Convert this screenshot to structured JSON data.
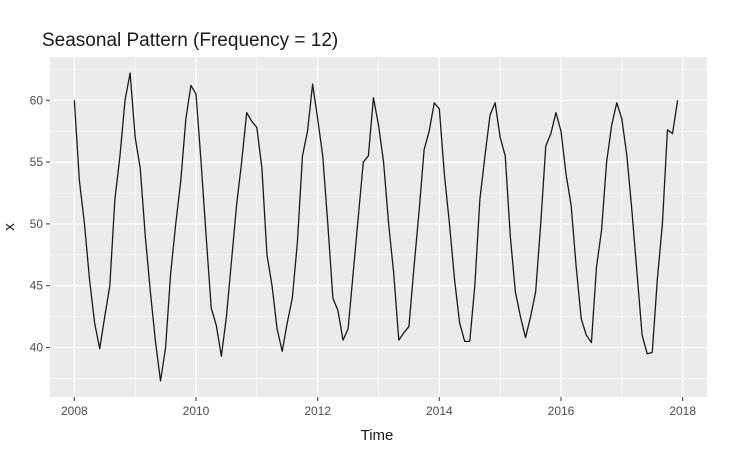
{
  "chart_data": {
    "type": "line",
    "title": "Seasonal Pattern (Frequency = 12)",
    "xlabel": "Time",
    "ylabel": "x",
    "xlim": [
      2007.6,
      2018.4
    ],
    "ylim": [
      36.0,
      63.5
    ],
    "x_ticks": [
      2008,
      2010,
      2012,
      2014,
      2016,
      2018
    ],
    "x_tick_labels": [
      "2008",
      "2010",
      "2012",
      "2014",
      "2016",
      "2018"
    ],
    "y_ticks": [
      40,
      45,
      50,
      55,
      60
    ],
    "y_tick_labels": [
      "40",
      "45",
      "50",
      "55",
      "60"
    ],
    "grid": true,
    "legend": "none",
    "colors": {
      "panel": "#ebebeb",
      "grid": "#ffffff",
      "line": "#1a1a1a"
    },
    "series": [
      {
        "x_start": 2008,
        "frequency": 12,
        "values": [
          60.0,
          53.5,
          50.0,
          45.5,
          42.0,
          39.9,
          42.5,
          45.0,
          52.0,
          55.5,
          60.0,
          62.2,
          57.0,
          54.5,
          49.0,
          44.5,
          40.5,
          37.3,
          40.0,
          46.0,
          50.0,
          53.5,
          58.5,
          61.2,
          60.5,
          55.0,
          49.0,
          43.2,
          41.8,
          39.3,
          42.5,
          47.0,
          51.5,
          55.0,
          59.0,
          58.3,
          57.8,
          54.5,
          47.5,
          45.0,
          41.5,
          39.7,
          42.0,
          44.0,
          48.5,
          55.5,
          57.5,
          61.3,
          58.5,
          55.5,
          50.0,
          44.0,
          43.0,
          40.6,
          41.5,
          46.0,
          50.5,
          55.0,
          55.5,
          60.2,
          58.0,
          55.0,
          50.0,
          46.0,
          40.6,
          41.2,
          41.7,
          46.5,
          51.0,
          56.0,
          57.5,
          59.8,
          59.3,
          54.0,
          50.0,
          45.5,
          42.0,
          40.5,
          40.5,
          45.0,
          52.0,
          55.5,
          58.8,
          59.8,
          57.0,
          55.5,
          49.0,
          44.5,
          42.5,
          40.8,
          42.5,
          44.5,
          50.0,
          56.3,
          57.3,
          59.0,
          57.5,
          54.0,
          51.5,
          46.5,
          42.3,
          41.0,
          40.4,
          46.5,
          49.5,
          55.0,
          58.0,
          59.8,
          58.5,
          55.5,
          51.0,
          46.0,
          41.0,
          39.5,
          39.6,
          45.5,
          50.0,
          57.6,
          57.3,
          60.0
        ]
      }
    ]
  }
}
